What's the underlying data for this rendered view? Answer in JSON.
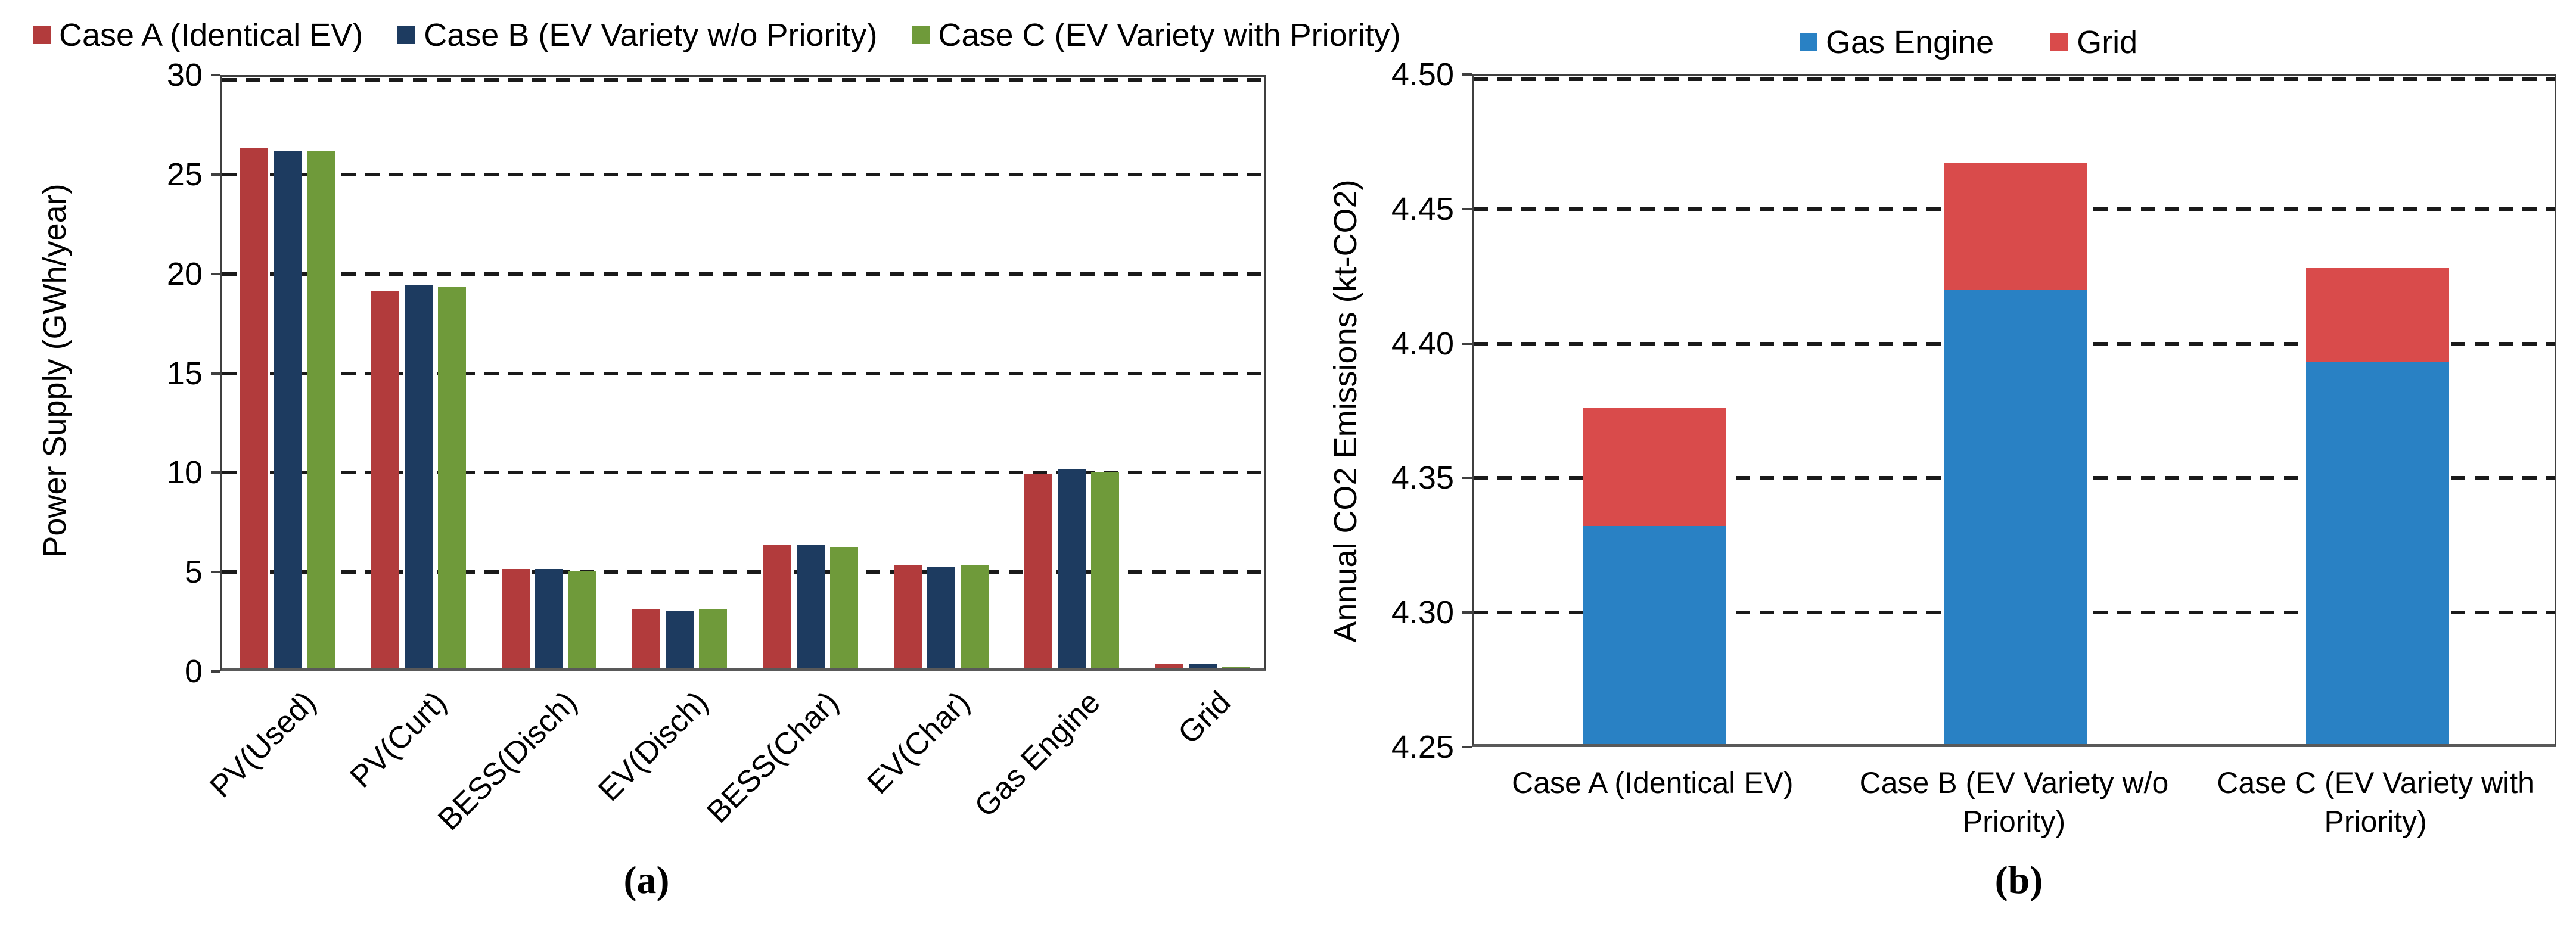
{
  "figure": {
    "captions": {
      "a": "(a)",
      "b": "(b)"
    }
  },
  "chart_data": [
    {
      "id": "a",
      "type": "bar",
      "title": "",
      "xlabel": "",
      "ylabel": "Power Supply (GWh/year)",
      "ylim": [
        0,
        30
      ],
      "yticks": [
        "0",
        "5",
        "10",
        "15",
        "20",
        "25",
        "30"
      ],
      "grid": "horizontal-dashed",
      "legend_position": "top-left",
      "caption": "(a)",
      "categories": [
        "PV(Used)",
        "PV(Curt)",
        "BESS(Disch)",
        "EV(Disch)",
        "BESS(Char)",
        "EV(Char)",
        "Gas Engine",
        "Grid"
      ],
      "series": [
        {
          "name": "Case A (Identical EV)",
          "color": "#b23b3c",
          "values": [
            26.2,
            19.0,
            5.0,
            3.0,
            6.2,
            5.2,
            9.8,
            0.2
          ]
        },
        {
          "name": "Case B (EV Variety w/o Priority)",
          "color": "#1d3b60",
          "values": [
            26.0,
            19.3,
            5.0,
            2.9,
            6.2,
            5.1,
            10.0,
            0.2
          ]
        },
        {
          "name": "Case C (EV Variety with Priority)",
          "color": "#6f9a3a",
          "values": [
            26.0,
            19.2,
            4.9,
            3.0,
            6.1,
            5.2,
            9.9,
            0.1
          ]
        }
      ]
    },
    {
      "id": "b",
      "type": "stacked-bar",
      "title": "",
      "xlabel": "",
      "ylabel": "Annual CO2 Emissions (kt-CO2)",
      "ylim": [
        4.25,
        4.5
      ],
      "baseline": 4.25,
      "yticks": [
        "4.25",
        "4.30",
        "4.35",
        "4.40",
        "4.45",
        "4.50"
      ],
      "grid": "horizontal-dashed",
      "legend_position": "top-center",
      "caption": "(b)",
      "categories": [
        "Case A (Identical EV)",
        "Case B (EV Variety w/o Priority)",
        "Case C (EV Variety with Priority)"
      ],
      "series": [
        {
          "name": "Gas Engine",
          "color": "#2981c4",
          "cumulative_tops": [
            4.331,
            4.419,
            4.392
          ]
        },
        {
          "name": "Grid",
          "color": "#d94b4b",
          "cumulative_tops": [
            4.375,
            4.466,
            4.427
          ]
        }
      ]
    }
  ]
}
